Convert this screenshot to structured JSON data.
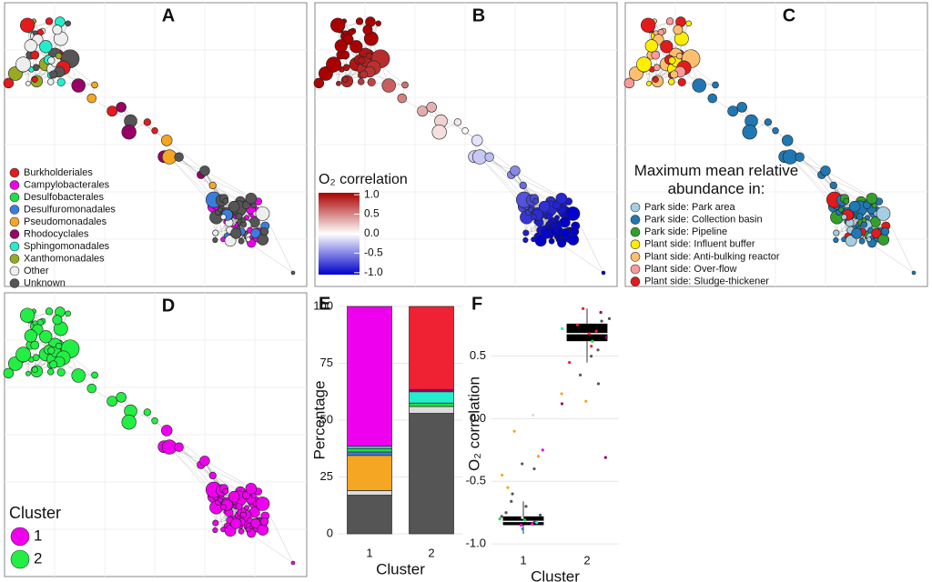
{
  "chart_data": [
    {
      "type": "network",
      "label": "A",
      "legend": [
        {
          "name": "Burkholderiales",
          "color": "#e41a1c"
        },
        {
          "name": "Campylobacterales",
          "color": "#ee00ee"
        },
        {
          "name": "Desulfobacterales",
          "color": "#22dd44"
        },
        {
          "name": "Desulfuromonadales",
          "color": "#3b7ddd"
        },
        {
          "name": "Pseudomonadales",
          "color": "#f5a623"
        },
        {
          "name": "Rhodocyclales",
          "color": "#990066"
        },
        {
          "name": "Sphingomonadales",
          "color": "#22eecc"
        },
        {
          "name": "Xanthomonadales",
          "color": "#99aa22"
        },
        {
          "name": "Other",
          "color": "#eeeeee"
        },
        {
          "name": "Unknown",
          "color": "#555555"
        }
      ]
    },
    {
      "type": "network",
      "label": "B",
      "colorbar": {
        "title": "O₂ correlation",
        "low_color": "#0000cc",
        "mid_color": "#ffffff",
        "high_color": "#aa0000",
        "lim": [
          -1.05,
          1.05
        ],
        "ticks": [
          {
            "value": 1.0,
            "label": "1.0"
          },
          0.5,
          {
            "value": 0.0,
            "label": "0.0"
          },
          -0.5,
          {
            "value": -1.0,
            "label": "-1.0"
          }
        ]
      }
    },
    {
      "type": "network",
      "label": "C",
      "legend_title": "Maximum mean relative abundance in:",
      "legend": [
        {
          "name": "Park side: Park area",
          "color": "#a6cee3"
        },
        {
          "name": "Park side: Collection basin",
          "color": "#1f78b4"
        },
        {
          "name": "Park side: Pipeline",
          "color": "#33a02c"
        },
        {
          "name": "Plant side: Influent buffer",
          "color": "#ffee00"
        },
        {
          "name": "Plant side: Anti-bulking reactor",
          "color": "#fdbf6f"
        },
        {
          "name": "Plant side: Over-flow",
          "color": "#fb9a99"
        },
        {
          "name": "Plant side: Sludge-thickener",
          "color": "#e31a1c"
        }
      ]
    },
    {
      "type": "network",
      "label": "D",
      "legend_title": "Cluster",
      "legend": [
        {
          "name": "1",
          "color": "#ee00ee"
        },
        {
          "name": "2",
          "color": "#22ee44"
        }
      ]
    },
    {
      "type": "stacked_bar",
      "label": "E",
      "x_label": "Cluster",
      "y_label": "Percentage",
      "categories": [
        "1",
        "2"
      ],
      "ylim": [
        -4,
        104
      ],
      "yticks": [
        0,
        25,
        50,
        75,
        100
      ],
      "series": [
        {
          "color": "#555555",
          "values": [
            17,
            53
          ]
        },
        {
          "color": "#dddddd",
          "values": [
            2,
            3
          ]
        },
        {
          "color": "#f5a623",
          "values": [
            15.5,
            0
          ]
        },
        {
          "color": "#3b7ddd",
          "values": [
            1.5,
            0
          ]
        },
        {
          "color": "#22dd44",
          "values": [
            1.5,
            1.5
          ]
        },
        {
          "color": "#22eecc",
          "values": [
            1,
            5
          ]
        },
        {
          "color": "#990066",
          "values": [
            0,
            1
          ]
        },
        {
          "color": "#ee00ee",
          "values": [
            61.5,
            0
          ]
        },
        {
          "color": "#ee2233",
          "values": [
            0,
            36.5
          ]
        }
      ]
    },
    {
      "type": "box_scatter",
      "label": "F",
      "x_label": "Cluster",
      "y_label": "O₂ correlation",
      "categories": [
        "1",
        "2"
      ],
      "ylim": [
        -1.05,
        0.97
      ],
      "yticks": [
        {
          "value": -1.0,
          "label": "-1.0"
        },
        -0.5,
        {
          "value": 0.0,
          "label": "0.0"
        },
        0.5
      ],
      "boxes": [
        {
          "whisker_low": -0.92,
          "q1": -0.85,
          "median": -0.82,
          "q3": -0.78,
          "whisker_high": -0.66
        },
        {
          "whisker_low": 0.45,
          "q1": 0.62,
          "median": 0.68,
          "q3": 0.76,
          "whisker_high": 0.88
        }
      ],
      "series": [
        {
          "values": [
            -0.82,
            -0.8,
            -0.85,
            -0.78,
            -0.83,
            -0.79,
            -0.88,
            -0.75,
            -0.66,
            -0.7,
            -0.55,
            -0.45,
            -0.4,
            -0.36,
            -0.3,
            -0.25,
            -0.1,
            0.03,
            -0.6,
            -0.84,
            -0.81,
            -0.77
          ],
          "colors": [
            "#555555",
            "#22dd44",
            "#ee00ee",
            "#555555",
            "#22eecc",
            "#dddddd",
            "#3b7ddd",
            "#555555",
            "#555555",
            "#555555",
            "#f5a623",
            "#f5a623",
            "#555555",
            "#555555",
            "#f5a623",
            "#ee00ee",
            "#f5a623",
            "#dddddd",
            "#555555",
            "#ee00ee",
            "#22dd44",
            "#555555"
          ]
        },
        {
          "values": [
            0.68,
            0.72,
            0.65,
            0.75,
            0.8,
            0.85,
            0.88,
            0.55,
            0.45,
            0.35,
            0.28,
            0.2,
            0.12,
            0.14,
            -0.31,
            0.62,
            0.7,
            0.78,
            0.58,
            0.5
          ],
          "colors": [
            "#ee2233",
            "#22eecc",
            "#990066",
            "#ee2233",
            "#555555",
            "#990066",
            "#ee2233",
            "#555555",
            "#ee2233",
            "#555555",
            "#555555",
            "#f5a623",
            "#990066",
            "#f5a623",
            "#990066",
            "#22dd44",
            "#ee2233",
            "#555555",
            "#ee2233",
            "#555555"
          ]
        }
      ]
    }
  ]
}
